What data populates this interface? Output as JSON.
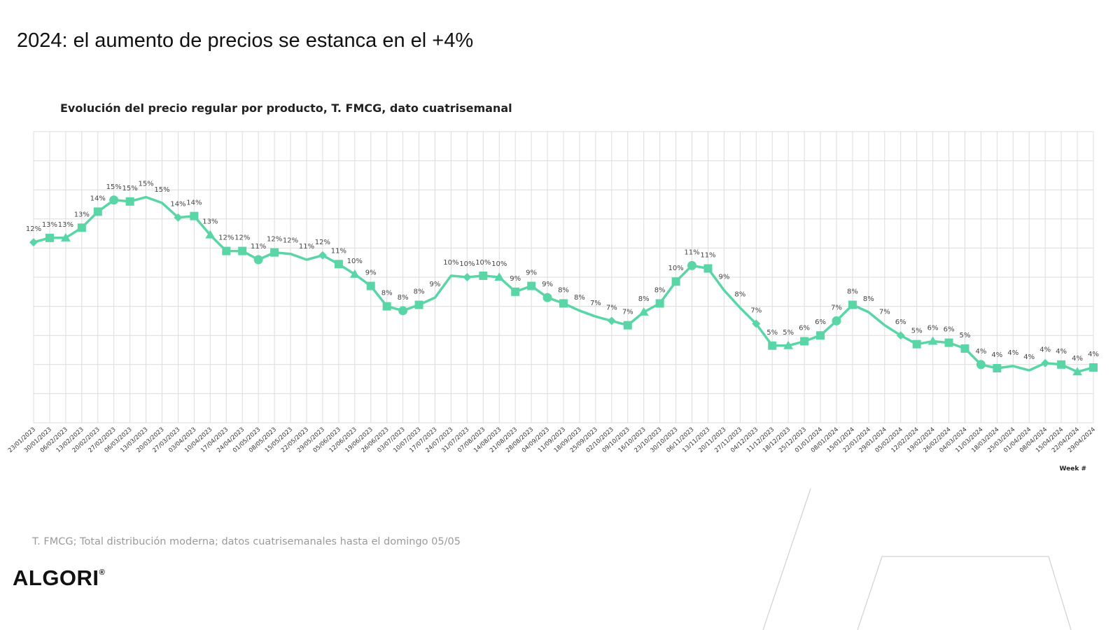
{
  "header": {
    "title": "2024: el aumento de precios se estanca en el +4%"
  },
  "footer": {
    "note": "T. FMCG; Total distribución moderna; datos cuatrisemanales hasta el domingo 05/05",
    "logo": "ALGORI",
    "logo_mark": "®"
  },
  "colors": {
    "series": "#5ad6a6",
    "grid": "#dcdcdc",
    "label": "#444444"
  },
  "chart_data": {
    "type": "line",
    "title": "Evolución del precio regular por producto, T. FMCG, dato cuatrisemanal",
    "xlabel": "Week #",
    "ylabel": "",
    "ylim": [
      0,
      20
    ],
    "grid": true,
    "legend": "none",
    "x": [
      "23/01/2023",
      "30/01/2023",
      "06/02/2023",
      "13/02/2023",
      "20/02/2023",
      "27/02/2023",
      "06/03/2023",
      "13/03/2023",
      "20/03/2023",
      "27/03/2023",
      "03/04/2023",
      "10/04/2023",
      "17/04/2023",
      "24/04/2023",
      "01/05/2023",
      "08/05/2023",
      "15/05/2023",
      "22/05/2023",
      "29/05/2023",
      "05/06/2023",
      "12/06/2023",
      "19/06/2023",
      "26/06/2023",
      "03/07/2023",
      "10/07/2023",
      "17/07/2023",
      "24/07/2023",
      "31/07/2023",
      "07/08/2023",
      "14/08/2023",
      "21/08/2023",
      "28/08/2023",
      "04/09/2023",
      "11/09/2023",
      "18/09/2023",
      "25/09/2023",
      "02/10/2023",
      "09/10/2023",
      "16/10/2023",
      "23/10/2023",
      "30/10/2023",
      "06/11/2023",
      "13/11/2023",
      "20/11/2023",
      "27/11/2023",
      "04/12/2023",
      "11/12/2023",
      "18/12/2023",
      "25/12/2023",
      "01/01/2024",
      "08/01/2024",
      "15/01/2024",
      "22/01/2024",
      "29/01/2024",
      "05/02/2024",
      "12/02/2024",
      "19/02/2024",
      "26/02/2024",
      "04/03/2024",
      "11/03/2024",
      "18/03/2024",
      "25/03/2024",
      "01/04/2024",
      "08/04/2024",
      "15/04/2024",
      "22/04/2024",
      "29/04/2024"
    ],
    "values": [
      12.4,
      12.7,
      12.7,
      13.4,
      14.5,
      15.3,
      15.2,
      15.5,
      15.1,
      14.1,
      14.2,
      12.9,
      11.8,
      11.8,
      11.2,
      11.7,
      11.6,
      11.2,
      11.5,
      10.9,
      10.2,
      9.4,
      8.0,
      7.7,
      8.1,
      8.6,
      10.1,
      10.0,
      10.1,
      10.0,
      9.0,
      9.4,
      8.6,
      8.2,
      7.7,
      7.3,
      7.0,
      6.7,
      7.6,
      8.2,
      9.7,
      10.8,
      10.6,
      9.1,
      7.9,
      6.8,
      5.3,
      5.3,
      5.6,
      6.0,
      7.0,
      8.1,
      7.6,
      6.7,
      6.0,
      5.4,
      5.6,
      5.5,
      5.1,
      4.0,
      3.75,
      3.9,
      3.6,
      4.1,
      4.0,
      3.5,
      3.8
    ],
    "labels": [
      "12%",
      "13%",
      "13%",
      "13%",
      "14%",
      "15%",
      "15%",
      "15%",
      "15%",
      "14%",
      "14%",
      "13%",
      "12%",
      "12%",
      "11%",
      "12%",
      "12%",
      "11%",
      "12%",
      "11%",
      "10%",
      "9%",
      "8%",
      "8%",
      "8%",
      "9%",
      "10%",
      "10%",
      "10%",
      "10%",
      "9%",
      "9%",
      "9%",
      "8%",
      "8%",
      "7%",
      "7%",
      "7%",
      "8%",
      "8%",
      "10%",
      "11%",
      "11%",
      "9%",
      "8%",
      "7%",
      "5%",
      "5%",
      "6%",
      "6%",
      "7%",
      "8%",
      "8%",
      "7%",
      "6%",
      "5%",
      "6%",
      "6%",
      "5%",
      "4%",
      "4%",
      "4%",
      "4%",
      "4%",
      "4%",
      "4%",
      "4%"
    ],
    "markers": [
      "diamond",
      "square",
      "triangle",
      "square",
      "square",
      "circle",
      "square",
      "none",
      "none",
      "diamond",
      "square",
      "triangle",
      "square",
      "square",
      "circle",
      "square",
      "none",
      "none",
      "diamond",
      "square",
      "triangle",
      "square",
      "square",
      "circle",
      "square",
      "none",
      "none",
      "diamond",
      "square",
      "triangle",
      "square",
      "square",
      "circle",
      "square",
      "none",
      "none",
      "diamond",
      "square",
      "triangle",
      "square",
      "square",
      "circle",
      "square",
      "none",
      "none",
      "diamond",
      "square",
      "triangle",
      "square",
      "square",
      "circle",
      "square",
      "none",
      "none",
      "diamond",
      "square",
      "triangle",
      "square",
      "square",
      "circle",
      "square",
      "none",
      "none",
      "diamond",
      "square",
      "triangle",
      "square"
    ]
  }
}
